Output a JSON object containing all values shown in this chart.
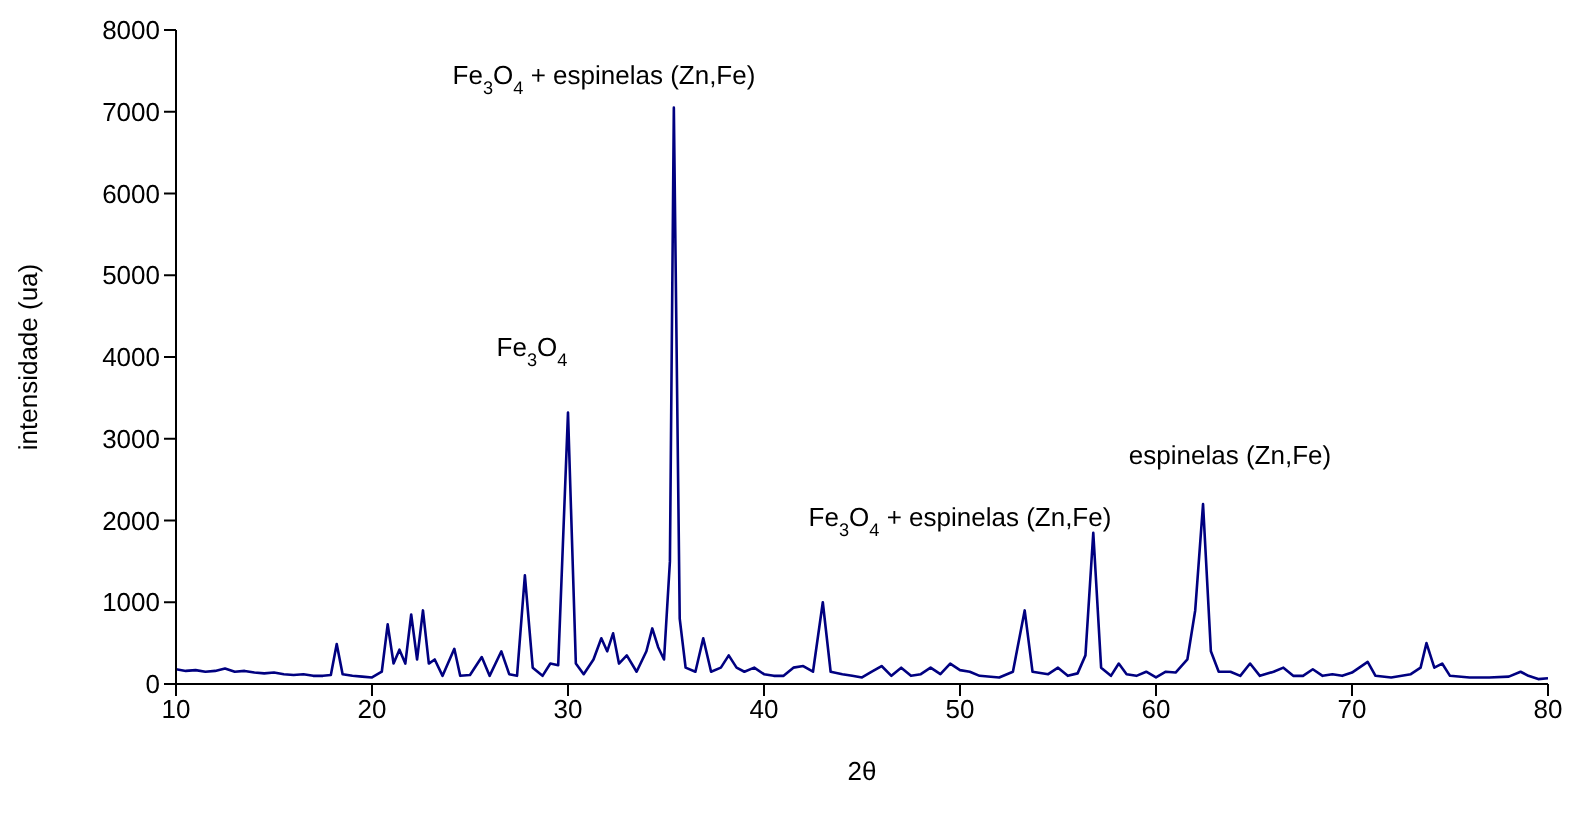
{
  "chart_data": {
    "type": "line",
    "xlabel": "2θ",
    "ylabel": "intensidade (ua)",
    "xlim": [
      10,
      80
    ],
    "xticks": [
      10,
      20,
      30,
      40,
      50,
      60,
      70,
      80
    ],
    "ylim": [
      0,
      8000
    ],
    "yticks": [
      0,
      1000,
      2000,
      3000,
      4000,
      5000,
      6000,
      7000,
      8000
    ],
    "grid": false,
    "marker": "none",
    "line_style": "solid",
    "annotations": [
      "Fe$_{3}$O$_{4}$ + espinelas (Zn,Fe)",
      "Fe$_{3}$O$_{4}$",
      "Fe$_{3}$O$_{4}$ + espinelas (Zn,Fe)",
      "espinelas (Zn,Fe)"
    ],
    "series": [
      {
        "color": "#000080",
        "x": [
          10,
          10.5,
          11,
          11.5,
          12,
          12.5,
          13,
          13.5,
          14,
          14.5,
          15,
          15.5,
          16,
          16.5,
          17,
          17.5,
          17.9,
          18.2,
          18.5,
          19,
          19.5,
          20,
          20.5,
          20.8,
          21.1,
          21.4,
          21.7,
          22.0,
          22.3,
          22.6,
          22.9,
          23.2,
          23.6,
          24.2,
          24.5,
          25,
          25.6,
          26,
          26.6,
          27,
          27.4,
          27.8,
          28.2,
          28.7,
          29.1,
          29.5,
          30.0,
          30.4,
          30.8,
          31.3,
          31.7,
          32.0,
          32.3,
          32.6,
          33.0,
          33.5,
          34.0,
          34.3,
          34.6,
          34.9,
          35.2,
          35.4,
          35.7,
          36.0,
          36.5,
          36.9,
          37.3,
          37.8,
          38.2,
          38.6,
          39,
          39.5,
          40,
          40.5,
          41,
          41.5,
          42,
          42.5,
          43.0,
          43.4,
          44,
          44.5,
          45,
          45.5,
          46,
          46.5,
          47,
          47.5,
          48,
          48.5,
          49,
          49.5,
          50,
          50.5,
          51,
          52,
          52.7,
          53.3,
          53.7,
          54.5,
          55,
          55.5,
          56,
          56.4,
          56.8,
          57.2,
          57.7,
          58.1,
          58.5,
          59,
          59.5,
          60,
          60.5,
          61,
          61.6,
          62.0,
          62.4,
          62.8,
          63.2,
          63.8,
          64.3,
          64.8,
          65.3,
          66,
          66.5,
          67,
          67.5,
          68,
          68.5,
          69,
          69.5,
          70,
          70.8,
          71.2,
          72,
          73,
          73.5,
          73.8,
          74.2,
          74.6,
          75,
          76,
          77,
          78,
          78.6,
          79,
          79.5,
          80
        ],
        "values": [
          180,
          160,
          170,
          150,
          160,
          190,
          150,
          160,
          140,
          130,
          140,
          120,
          110,
          120,
          100,
          100,
          110,
          490,
          120,
          100,
          90,
          80,
          150,
          730,
          250,
          420,
          250,
          850,
          300,
          900,
          250,
          300,
          100,
          430,
          100,
          110,
          330,
          100,
          400,
          120,
          100,
          1330,
          200,
          100,
          250,
          230,
          3320,
          250,
          120,
          300,
          560,
          400,
          620,
          250,
          350,
          150,
          400,
          680,
          450,
          300,
          1500,
          7050,
          800,
          200,
          150,
          560,
          150,
          200,
          350,
          200,
          150,
          200,
          120,
          100,
          100,
          200,
          220,
          150,
          1000,
          150,
          120,
          100,
          80,
          150,
          220,
          100,
          200,
          100,
          120,
          200,
          120,
          250,
          170,
          150,
          100,
          80,
          150,
          900,
          150,
          120,
          200,
          100,
          130,
          350,
          1850,
          200,
          100,
          250,
          120,
          100,
          150,
          80,
          150,
          140,
          300,
          900,
          2200,
          400,
          150,
          150,
          100,
          250,
          100,
          150,
          200,
          100,
          100,
          180,
          100,
          120,
          100,
          140,
          270,
          100,
          80,
          120,
          200,
          500,
          200,
          250,
          100,
          80,
          80,
          90,
          150,
          100,
          60,
          70
        ]
      }
    ]
  }
}
